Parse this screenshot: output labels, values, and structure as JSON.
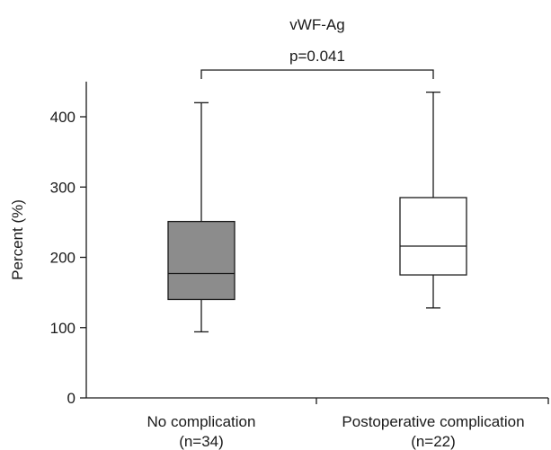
{
  "chart_data": {
    "type": "box",
    "title": "vWF-Ag",
    "annotation": "p=0.041",
    "ylabel": "Percent (%)",
    "xlabel": "",
    "ylim": [
      0,
      450
    ],
    "yticks": [
      0,
      100,
      200,
      300,
      400
    ],
    "grid": false,
    "categories": [
      {
        "label": "No complication",
        "sublabel": "(n=34)"
      },
      {
        "label": "Postoperative complication",
        "sublabel": "(n=22)"
      }
    ],
    "boxes": [
      {
        "min": 94,
        "q1": 140,
        "median": 177,
        "q3": 251,
        "max": 420,
        "fill": "#8c8c8c"
      },
      {
        "min": 128,
        "q1": 175,
        "median": 216,
        "q3": 285,
        "max": 435,
        "fill": "#ffffff"
      }
    ]
  }
}
